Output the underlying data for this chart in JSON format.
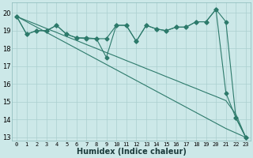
{
  "xlabel": "Humidex (Indice chaleur)",
  "x_values": [
    0,
    1,
    2,
    3,
    4,
    5,
    6,
    7,
    8,
    9,
    10,
    11,
    12,
    13,
    14,
    15,
    16,
    17,
    18,
    19,
    20,
    21,
    22,
    23
  ],
  "line_jagged1": [
    19.8,
    18.8,
    19.0,
    19.0,
    19.3,
    18.8,
    18.6,
    18.6,
    18.55,
    18.55,
    19.3,
    19.3,
    18.4,
    19.3,
    19.1,
    19.0,
    19.2,
    19.2,
    19.5,
    19.5,
    20.2,
    19.5,
    14.1,
    13.0
  ],
  "line_jagged2": [
    19.8,
    18.8,
    19.0,
    19.0,
    19.3,
    18.8,
    18.6,
    18.55,
    18.55,
    17.5,
    19.3,
    19.3,
    18.4,
    19.3,
    19.1,
    19.0,
    19.2,
    19.2,
    19.5,
    19.5,
    20.2,
    15.5,
    14.1,
    13.0
  ],
  "line_straight1": [
    19.8,
    19.57,
    19.35,
    19.12,
    18.9,
    18.67,
    18.45,
    18.22,
    18.0,
    17.77,
    17.55,
    17.32,
    17.1,
    16.87,
    16.65,
    16.42,
    16.2,
    15.97,
    15.75,
    15.52,
    15.3,
    15.07,
    14.3,
    13.0
  ],
  "line_straight2": [
    19.8,
    19.5,
    19.2,
    18.9,
    18.6,
    18.3,
    18.0,
    17.7,
    17.4,
    17.1,
    16.8,
    16.5,
    16.2,
    15.9,
    15.6,
    15.3,
    15.0,
    14.7,
    14.4,
    14.1,
    13.8,
    13.5,
    13.25,
    13.0
  ],
  "ylim": [
    12.8,
    20.6
  ],
  "xlim": [
    -0.5,
    23.5
  ],
  "yticks": [
    13,
    14,
    15,
    16,
    17,
    18,
    19,
    20
  ],
  "xticks": [
    0,
    1,
    2,
    3,
    4,
    5,
    6,
    7,
    8,
    9,
    10,
    11,
    12,
    13,
    14,
    15,
    16,
    17,
    18,
    19,
    20,
    21,
    22,
    23
  ],
  "line_color": "#2d7a6b",
  "bg_color": "#cce8e8",
  "grid_color": "#aacfcf",
  "marker_size": 2.5
}
